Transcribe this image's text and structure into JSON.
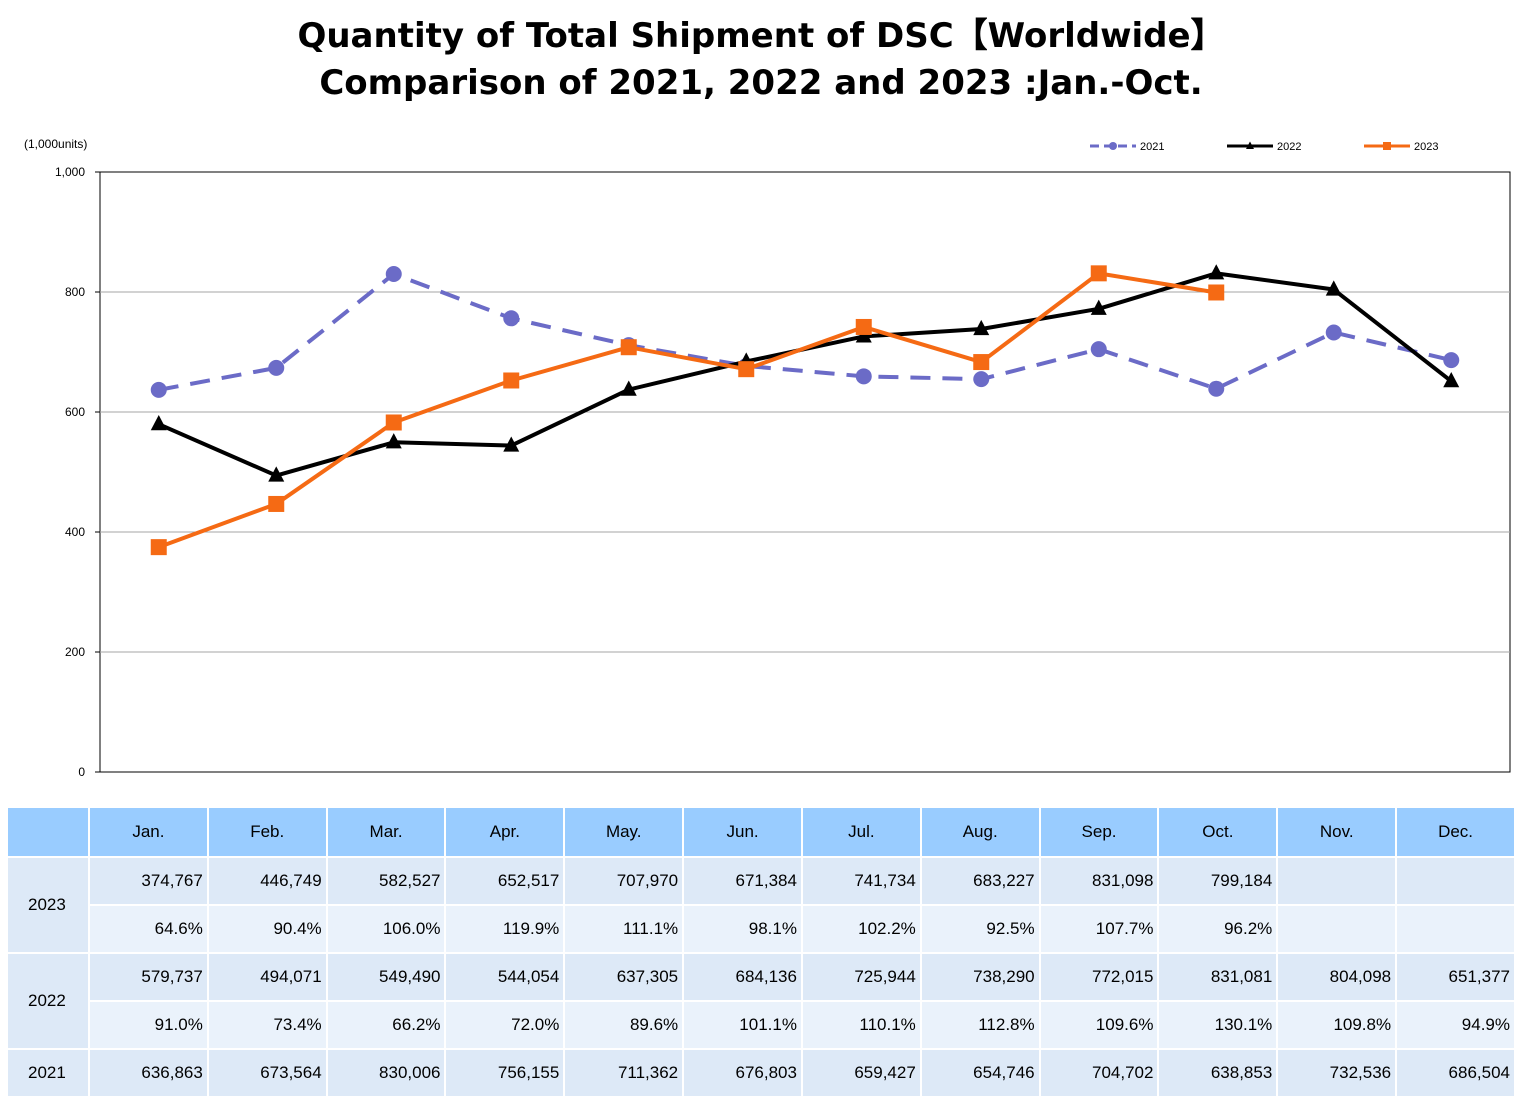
{
  "title_line1": "Quantity of Total Shipment of DSC【Worldwide】",
  "title_line2": "Comparison of 2021, 2022 and 2023 :Jan.-Oct.",
  "chart_data": {
    "type": "line",
    "unit_label": "(1,000units)",
    "ylim": [
      0,
      1000
    ],
    "yticks": [
      "0",
      "200",
      "400",
      "600",
      "800",
      "1,000"
    ],
    "grid": true,
    "legend_position": "top-right",
    "categories": [
      "Jan.",
      "Feb.",
      "Mar.",
      "Apr.",
      "May.",
      "Jun.",
      "Jul.",
      "Aug.",
      "Sep.",
      "Oct.",
      "Nov.",
      "Dec."
    ],
    "series": [
      {
        "name": "2021",
        "color": "#6b6bc7",
        "marker": "circle",
        "dashed": true,
        "values": [
          636.863,
          673.564,
          830.006,
          756.155,
          711.362,
          676.803,
          659.427,
          654.746,
          704.702,
          638.853,
          732.536,
          686.504
        ]
      },
      {
        "name": "2022",
        "color": "#000000",
        "marker": "triangle",
        "dashed": false,
        "values": [
          579.737,
          494.071,
          549.49,
          544.054,
          637.305,
          684.136,
          725.944,
          738.29,
          772.015,
          831.081,
          804.098,
          651.377
        ]
      },
      {
        "name": "2023",
        "color": "#f56a14",
        "marker": "square",
        "dashed": false,
        "values": [
          374.767,
          446.749,
          582.527,
          652.517,
          707.97,
          671.384,
          741.734,
          683.227,
          831.098,
          799.184,
          null,
          null
        ]
      }
    ]
  },
  "table": {
    "header": [
      "",
      "Jan.",
      "Feb.",
      "Mar.",
      "Apr.",
      "May.",
      "Jun.",
      "Jul.",
      "Aug.",
      "Sep.",
      "Oct.",
      "Nov.",
      "Dec."
    ],
    "rows": [
      {
        "year": "2023",
        "units": [
          "374,767",
          "446,749",
          "582,527",
          "652,517",
          "707,970",
          "671,384",
          "741,734",
          "683,227",
          "831,098",
          "799,184",
          "",
          ""
        ],
        "ratio": [
          "64.6%",
          "90.4%",
          "106.0%",
          "119.9%",
          "111.1%",
          "98.1%",
          "102.2%",
          "92.5%",
          "107.7%",
          "96.2%",
          "",
          ""
        ]
      },
      {
        "year": "2022",
        "units": [
          "579,737",
          "494,071",
          "549,490",
          "544,054",
          "637,305",
          "684,136",
          "725,944",
          "738,290",
          "772,015",
          "831,081",
          "804,098",
          "651,377"
        ],
        "ratio": [
          "91.0%",
          "73.4%",
          "66.2%",
          "72.0%",
          "89.6%",
          "101.1%",
          "110.1%",
          "112.8%",
          "109.6%",
          "130.1%",
          "109.8%",
          "94.9%"
        ]
      },
      {
        "year": "2021",
        "units": [
          "636,863",
          "673,564",
          "830,006",
          "756,155",
          "711,362",
          "676,803",
          "659,427",
          "654,746",
          "704,702",
          "638,853",
          "732,536",
          "686,504"
        ]
      }
    ]
  }
}
